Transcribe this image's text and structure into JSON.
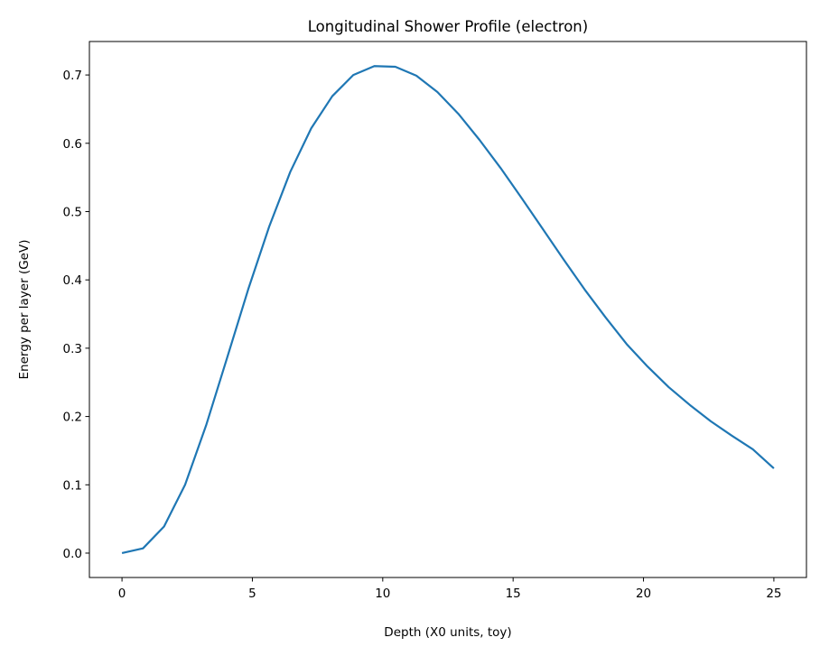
{
  "chart_data": {
    "type": "line",
    "title": "Longitudinal Shower Profile (electron)",
    "xlabel": "Depth (X0 units, toy)",
    "ylabel": "Energy per layer (GeV)",
    "xlim": [
      -1.25,
      26.25
    ],
    "ylim": [
      -0.0357,
      0.749
    ],
    "xticks": [
      0,
      5,
      10,
      15,
      20,
      25
    ],
    "xtick_labels": [
      "0",
      "5",
      "10",
      "15",
      "20",
      "25"
    ],
    "yticks": [
      0.0,
      0.1,
      0.2,
      0.3,
      0.4,
      0.5,
      0.6,
      0.7
    ],
    "ytick_labels": [
      "0.0",
      "0.1",
      "0.2",
      "0.3",
      "0.4",
      "0.5",
      "0.6",
      "0.7"
    ],
    "grid": false,
    "legend": "none",
    "series": [
      {
        "color": "#1f77b4",
        "x": [
          0,
          0.806,
          1.613,
          2.419,
          3.226,
          4.032,
          4.839,
          5.645,
          6.452,
          7.258,
          8.065,
          8.871,
          9.677,
          10.484,
          11.29,
          12.097,
          12.903,
          13.71,
          14.516,
          15.323,
          16.129,
          16.935,
          17.742,
          18.548,
          19.355,
          20.161,
          20.968,
          21.774,
          22.581,
          23.387,
          24.194,
          25.0
        ],
        "values": [
          0.0,
          0.007,
          0.039,
          0.1,
          0.187,
          0.286,
          0.386,
          0.478,
          0.558,
          0.622,
          0.669,
          0.7,
          0.713,
          0.712,
          0.699,
          0.675,
          0.643,
          0.605,
          0.564,
          0.52,
          0.475,
          0.43,
          0.386,
          0.345,
          0.306,
          0.273,
          0.243,
          0.217,
          0.193,
          0.172,
          0.152,
          0.124
        ]
      }
    ]
  }
}
